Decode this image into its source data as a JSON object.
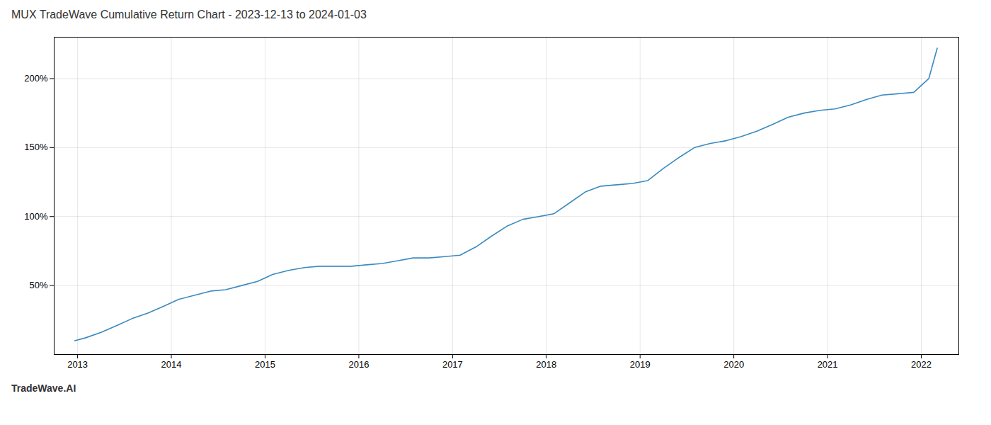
{
  "chart_data": {
    "type": "line",
    "title": "MUX TradeWave Cumulative Return Chart - 2023-12-13 to 2024-01-03",
    "annotations": [
      "TradeWave.AI"
    ],
    "x": [
      2012.97,
      2013.08,
      2013.25,
      2013.42,
      2013.58,
      2013.75,
      2013.92,
      2014.08,
      2014.25,
      2014.42,
      2014.58,
      2014.75,
      2014.92,
      2015.08,
      2015.25,
      2015.42,
      2015.58,
      2015.75,
      2015.92,
      2016.08,
      2016.25,
      2016.42,
      2016.58,
      2016.75,
      2016.92,
      2017.08,
      2017.25,
      2017.42,
      2017.58,
      2017.75,
      2017.92,
      2018.08,
      2018.25,
      2018.42,
      2018.58,
      2018.75,
      2018.92,
      2019.08,
      2019.25,
      2019.42,
      2019.58,
      2019.75,
      2019.92,
      2020.08,
      2020.25,
      2020.42,
      2020.58,
      2020.75,
      2020.92,
      2021.08,
      2021.25,
      2021.42,
      2021.58,
      2021.75,
      2021.92,
      2022.08,
      2022.17
    ],
    "values": [
      10,
      12,
      16,
      21,
      26,
      30,
      35,
      40,
      43,
      46,
      47,
      50,
      53,
      58,
      61,
      63,
      64,
      64,
      64,
      65,
      66,
      68,
      70,
      70,
      71,
      72,
      78,
      86,
      93,
      98,
      100,
      102,
      110,
      118,
      122,
      123,
      124,
      126,
      135,
      143,
      150,
      153,
      155,
      158,
      162,
      167,
      172,
      175,
      177,
      178,
      181,
      185,
      188,
      189,
      190,
      200,
      222
    ],
    "color": "#3a8abf",
    "xlim": [
      2012.75,
      2022.4
    ],
    "xticks": [
      2013,
      2014,
      2015,
      2016,
      2017,
      2018,
      2019,
      2020,
      2021,
      2022
    ],
    "ylim": [
      0,
      230
    ],
    "yticks": [
      {
        "value": 50,
        "label": "50%"
      },
      {
        "value": 100,
        "label": "100%"
      },
      {
        "value": 150,
        "label": "150%"
      },
      {
        "value": 200,
        "label": "200%"
      }
    ],
    "grid": true
  }
}
